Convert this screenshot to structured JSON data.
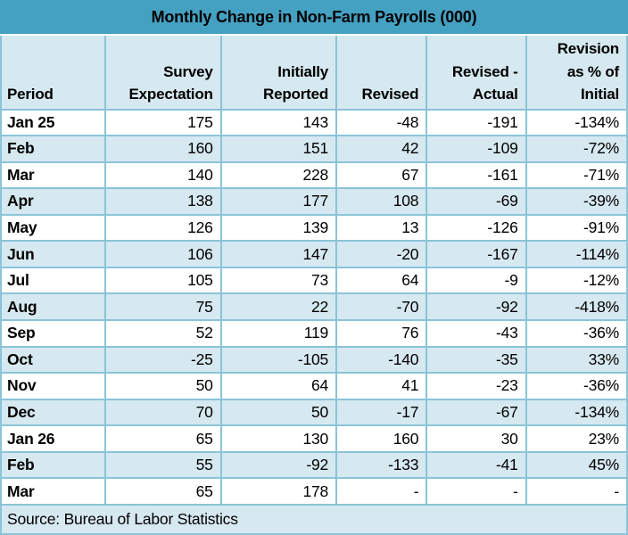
{
  "title": "Monthly Change in Non-Farm Payrolls (000)",
  "source": "Source: Bureau of Labor Statistics",
  "colors": {
    "title_bg": "#45a1c2",
    "stripe_bg": "#d6e8f0",
    "grid": "#8ac4d8",
    "text": "#000000"
  },
  "header_display": {
    "col0": "Period",
    "col1": "Survey\nExpectation",
    "col2": "Initially\nReported",
    "col3": "Revised",
    "col4": "Revised -\nActual",
    "col5": "Revision\nas % of\nInitial"
  },
  "chart_data": {
    "type": "table",
    "title": "Monthly Change in Non-Farm Payrolls (000)",
    "columns": [
      "Period",
      "Survey Expectation",
      "Initially Reported",
      "Revised",
      "Revised - Actual",
      "Revision as % of Initial"
    ],
    "rows": [
      [
        "Jan 25",
        "175",
        "143",
        "-48",
        "-191",
        "-134%"
      ],
      [
        "Feb",
        "160",
        "151",
        "42",
        "-109",
        "-72%"
      ],
      [
        "Mar",
        "140",
        "228",
        "67",
        "-161",
        "-71%"
      ],
      [
        "Apr",
        "138",
        "177",
        "108",
        "-69",
        "-39%"
      ],
      [
        "May",
        "126",
        "139",
        "13",
        "-126",
        "-91%"
      ],
      [
        "Jun",
        "106",
        "147",
        "-20",
        "-167",
        "-114%"
      ],
      [
        "Jul",
        "105",
        "73",
        "64",
        "-9",
        "-12%"
      ],
      [
        "Aug",
        "75",
        "22",
        "-70",
        "-92",
        "-418%"
      ],
      [
        "Sep",
        "52",
        "119",
        "76",
        "-43",
        "-36%"
      ],
      [
        "Oct",
        "-25",
        "-105",
        "-140",
        "-35",
        "33%"
      ],
      [
        "Nov",
        "50",
        "64",
        "41",
        "-23",
        "-36%"
      ],
      [
        "Dec",
        "70",
        "50",
        "-17",
        "-67",
        "-134%"
      ],
      [
        "Jan 26",
        "65",
        "130",
        "160",
        "30",
        "23%"
      ],
      [
        "Feb",
        "55",
        "-92",
        "-133",
        "-41",
        "45%"
      ],
      [
        "Mar",
        "65",
        "178",
        "-",
        "-",
        "-"
      ]
    ],
    "source": "Source: Bureau of Labor Statistics"
  }
}
